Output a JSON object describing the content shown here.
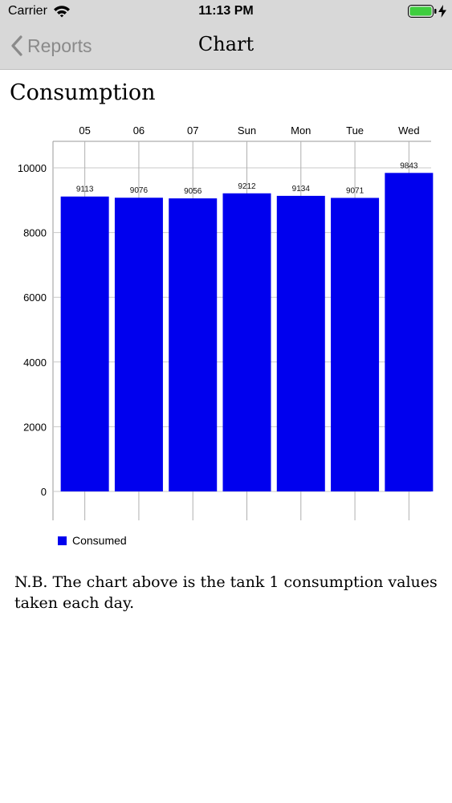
{
  "status_bar": {
    "carrier": "Carrier",
    "time": "11:13 PM",
    "wifi_icon": "wifi-icon",
    "battery_icon": "battery-icon",
    "charge_icon": "charging-bolt-icon"
  },
  "nav_bar": {
    "back_label": "Reports",
    "back_icon": "chevron-left-icon",
    "title": "Chart"
  },
  "page": {
    "heading": "Consumption",
    "note": "N.B. The chart above is the tank 1 consumption values taken each day."
  },
  "chart_data": {
    "type": "bar",
    "categories": [
      "05",
      "06",
      "07",
      "Sun",
      "Mon",
      "Tue",
      "Wed"
    ],
    "series": [
      {
        "name": "Consumed",
        "values": [
          9113,
          9076,
          9056,
          9212,
          9134,
          9071,
          9843
        ]
      }
    ],
    "y_ticks": [
      0,
      2000,
      4000,
      6000,
      8000,
      10000
    ],
    "ylim": [
      0,
      10800
    ],
    "x_axis_position": "top",
    "grid": true,
    "legend_position": "bottom-left",
    "bar_color": "#0000ee",
    "grid_color": "#c8c8c8"
  }
}
